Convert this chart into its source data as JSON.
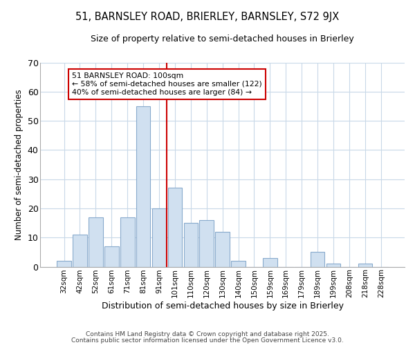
{
  "title": "51, BARNSLEY ROAD, BRIERLEY, BARNSLEY, S72 9JX",
  "subtitle": "Size of property relative to semi-detached houses in Brierley",
  "xlabel": "Distribution of semi-detached houses by size in Brierley",
  "ylabel": "Number of semi-detached properties",
  "bar_labels": [
    "32sqm",
    "42sqm",
    "52sqm",
    "61sqm",
    "71sqm",
    "81sqm",
    "91sqm",
    "101sqm",
    "110sqm",
    "120sqm",
    "130sqm",
    "140sqm",
    "150sqm",
    "159sqm",
    "169sqm",
    "179sqm",
    "189sqm",
    "199sqm",
    "208sqm",
    "218sqm",
    "228sqm"
  ],
  "bar_values": [
    2,
    11,
    17,
    7,
    17,
    55,
    20,
    27,
    15,
    16,
    12,
    2,
    0,
    3,
    0,
    0,
    5,
    1,
    0,
    1,
    0
  ],
  "bar_color": "#d0e0f0",
  "bar_edgecolor": "#88aacc",
  "reference_line_index": 7,
  "annotation_title": "51 BARNSLEY ROAD: 100sqm",
  "annotation_line1": "← 58% of semi-detached houses are smaller (122)",
  "annotation_line2": "40% of semi-detached houses are larger (84) →",
  "annotation_box_color": "#ffffff",
  "annotation_box_edgecolor": "#cc0000",
  "vline_color": "#cc0000",
  "ylim": [
    0,
    70
  ],
  "yticks": [
    0,
    10,
    20,
    30,
    40,
    50,
    60,
    70
  ],
  "footer1": "Contains HM Land Registry data © Crown copyright and database right 2025.",
  "footer2": "Contains public sector information licensed under the Open Government Licence v3.0.",
  "background_color": "#ffffff",
  "grid_color": "#c8d8e8"
}
